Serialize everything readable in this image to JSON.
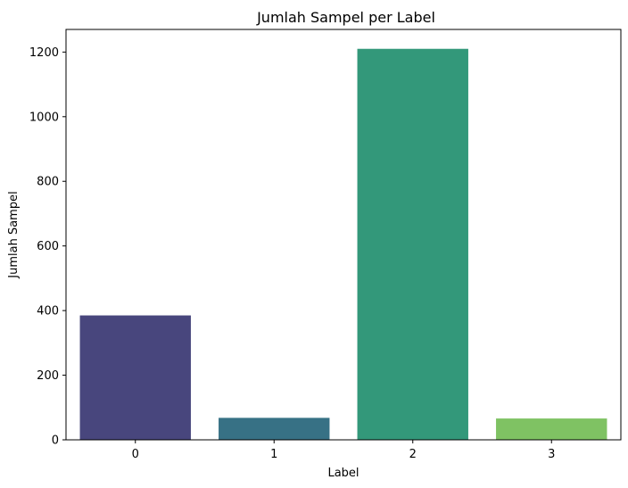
{
  "chart_data": {
    "type": "bar",
    "title": "Jumlah Sampel per Label",
    "xlabel": "Label",
    "ylabel": "Jumlah Sampel",
    "categories": [
      "0",
      "1",
      "2",
      "3"
    ],
    "values": [
      385,
      68,
      1210,
      66
    ],
    "colors": [
      "#48467d",
      "#377185",
      "#33987a",
      "#7fc263"
    ],
    "ylim": [
      0,
      1270
    ],
    "yticks": [
      0,
      200,
      400,
      600,
      800,
      1000,
      1200
    ],
    "grid": false,
    "legend": "none"
  }
}
